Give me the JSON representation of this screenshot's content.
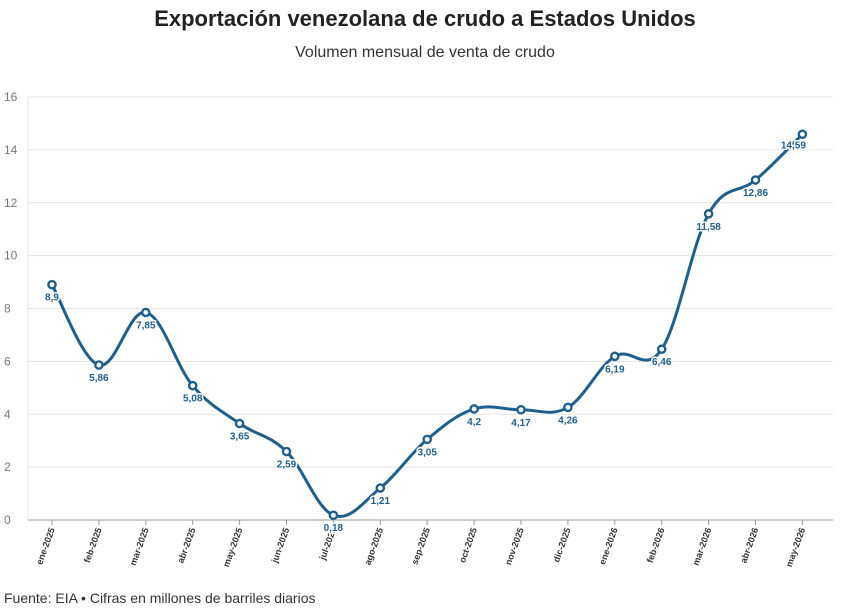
{
  "header": {
    "title": "Exportación venezolana de crudo a Estados Unidos",
    "subtitle": "Volumen mensual de venta de crudo"
  },
  "footer": {
    "source": "Fuente: EIA • Cifras en millones de barriles diarios"
  },
  "colors": {
    "line": "#1f5f8b",
    "grid": "#e3e3e3",
    "axis": "#999999"
  },
  "chart_data": {
    "type": "line",
    "title": "Exportación venezolana de crudo a Estados Unidos",
    "subtitle": "Volumen mensual de venta de crudo",
    "xlabel": "",
    "ylabel": "",
    "ylim": [
      0,
      16
    ],
    "yticks": [
      0,
      2,
      4,
      6,
      8,
      10,
      12,
      14,
      16
    ],
    "grid": true,
    "legend": "none",
    "categories": [
      "ene-2025",
      "feb-2025",
      "mar-2025",
      "abr-2025",
      "may-2025",
      "jun-2025",
      "jul-2025",
      "ago-2025",
      "sep-2025",
      "oct-2025",
      "nov-2025",
      "dic-2025",
      "ene-2026",
      "feb-2026",
      "mar-2026",
      "abr-2026",
      "may-2026"
    ],
    "values": [
      8.9,
      5.86,
      7.85,
      5.08,
      3.65,
      2.59,
      0.18,
      1.21,
      3.05,
      4.2,
      4.17,
      4.26,
      6.19,
      6.46,
      11.58,
      12.86,
      14.59
    ],
    "data_labels": [
      "8,9",
      "5,86",
      "7,85",
      "5,08",
      "3,65",
      "2,59",
      "0,18",
      "1,21",
      "3,05",
      "4,2",
      "4,17",
      "4,26",
      "6,19",
      "6,46",
      "11,58",
      "12,86",
      "14,59"
    ]
  }
}
